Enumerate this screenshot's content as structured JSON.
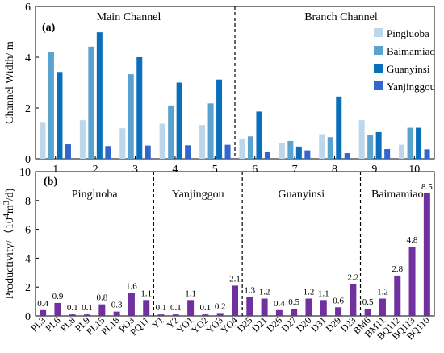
{
  "chart_data": [
    {
      "type": "bar",
      "panel_label": "(a)",
      "ylabel": "Channel  Width/ m",
      "ylim": [
        0,
        6
      ],
      "yticks": [
        0,
        2,
        4,
        6
      ],
      "categories": [
        "1",
        "2",
        "3",
        "4",
        "5",
        "6",
        "7",
        "8",
        "9",
        "10"
      ],
      "groups": [
        {
          "label": "Main Channel",
          "range": [
            1,
            5
          ]
        },
        {
          "label": "Branch Channel",
          "range": [
            6,
            10
          ]
        }
      ],
      "legend_position": "right",
      "series": [
        {
          "name": "Pingluoba",
          "color": "#bcd7ec",
          "values": [
            1.45,
            1.52,
            1.2,
            1.38,
            1.33,
            0.77,
            0.62,
            0.97,
            1.52,
            0.55
          ]
        },
        {
          "name": "Baimamiao",
          "color": "#5aa3cf",
          "values": [
            4.22,
            4.42,
            3.33,
            2.1,
            2.18,
            0.88,
            0.7,
            0.85,
            0.93,
            1.22
          ]
        },
        {
          "name": "Guanyinsi",
          "color": "#0a6fba",
          "values": [
            3.42,
            4.98,
            4.0,
            3.0,
            3.12,
            1.86,
            0.48,
            2.45,
            1.05,
            1.22
          ]
        },
        {
          "name": "Yanjinggou",
          "color": "#3366cc",
          "values": [
            0.57,
            0.5,
            0.52,
            0.53,
            0.55,
            0.27,
            0.33,
            0.22,
            0.38,
            0.37
          ]
        }
      ]
    },
    {
      "type": "bar",
      "panel_label": "(b)",
      "ylabel_main": "Productivity/（10",
      "ylabel_sup": "4",
      "ylabel_mid": "m",
      "ylabel_sup2": "3",
      "ylabel_end": "/d)",
      "ylim": [
        0,
        10
      ],
      "yticks": [
        0,
        2,
        4,
        6,
        8,
        10
      ],
      "color": "#7030a0",
      "categories": [
        "PL3",
        "PL6",
        "PL8",
        "PL9",
        "PL15",
        "PL18",
        "PQ3",
        "PQ11",
        "Y1",
        "Y2",
        "YQ1",
        "YQ2",
        "YQ3",
        "YQ4",
        "D25",
        "D21",
        "D26",
        "D27",
        "D20",
        "D31",
        "D29",
        "D23",
        "BM6",
        "BM11",
        "BQ112",
        "BQ113",
        "BQ110"
      ],
      "values": [
        0.4,
        0.9,
        0.1,
        0.1,
        0.8,
        0.3,
        1.6,
        1.1,
        0.1,
        0.1,
        1.1,
        0.1,
        0.2,
        2.1,
        1.3,
        1.2,
        0.4,
        0.5,
        1.2,
        1.1,
        0.6,
        2.2,
        0.5,
        1.2,
        2.8,
        4.8,
        8.5
      ],
      "value_labels": [
        "0.4",
        "0.9",
        "0.1",
        "0.1",
        "0.8",
        "0.3",
        "1.6",
        "1.1",
        "0.1",
        "0.1",
        "1.1",
        "0.1",
        "0.2",
        "2.1",
        "1.3",
        "1.2",
        "0.4",
        "0.5",
        "1.2",
        "1.1",
        "0.6",
        "2.2",
        "0.5",
        "1.2",
        "2.8",
        "4.8",
        "8.5"
      ],
      "groups": [
        {
          "label": "Pingluoba",
          "count": 8
        },
        {
          "label": "Yanjinggou",
          "count": 6
        },
        {
          "label": "Guanyinsi",
          "count": 8
        },
        {
          "label": "Baimamiao",
          "count": 5
        }
      ]
    }
  ]
}
